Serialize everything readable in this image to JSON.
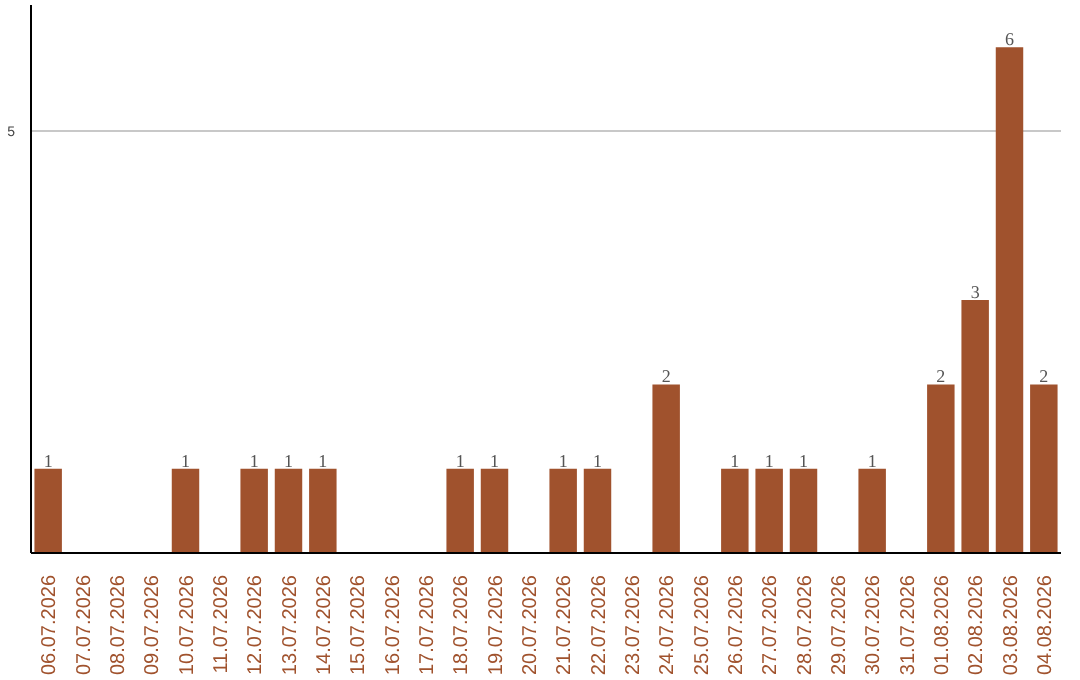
{
  "chart_data": {
    "type": "bar",
    "categories": [
      "06.07.2026",
      "07.07.2026",
      "08.07.2026",
      "09.07.2026",
      "10.07.2026",
      "11.07.2026",
      "12.07.2026",
      "13.07.2026",
      "14.07.2026",
      "15.07.2026",
      "16.07.2026",
      "17.07.2026",
      "18.07.2026",
      "19.07.2026",
      "20.07.2026",
      "21.07.2026",
      "22.07.2026",
      "23.07.2026",
      "24.07.2026",
      "25.07.2026",
      "26.07.2026",
      "27.07.2026",
      "28.07.2026",
      "29.07.2026",
      "30.07.2026",
      "31.07.2026",
      "01.08.2026",
      "02.08.2026",
      "03.08.2026",
      "04.08.2026"
    ],
    "values": [
      1,
      0,
      0,
      0,
      1,
      0,
      1,
      1,
      1,
      0,
      0,
      0,
      1,
      1,
      0,
      1,
      1,
      0,
      2,
      0,
      1,
      1,
      1,
      0,
      1,
      0,
      2,
      3,
      6,
      2
    ],
    "value_labels": [
      "1",
      null,
      null,
      null,
      "1",
      null,
      "1",
      "1",
      "1",
      null,
      null,
      null,
      "1",
      "1",
      null,
      "1",
      "1",
      null,
      "2",
      null,
      "1",
      "1",
      "1",
      null,
      "1",
      null,
      "2",
      "3",
      "6",
      "2"
    ],
    "color": "#a0522d",
    "ylim": [
      0,
      6.5
    ],
    "yticks": [
      5
    ],
    "grid": "y"
  }
}
